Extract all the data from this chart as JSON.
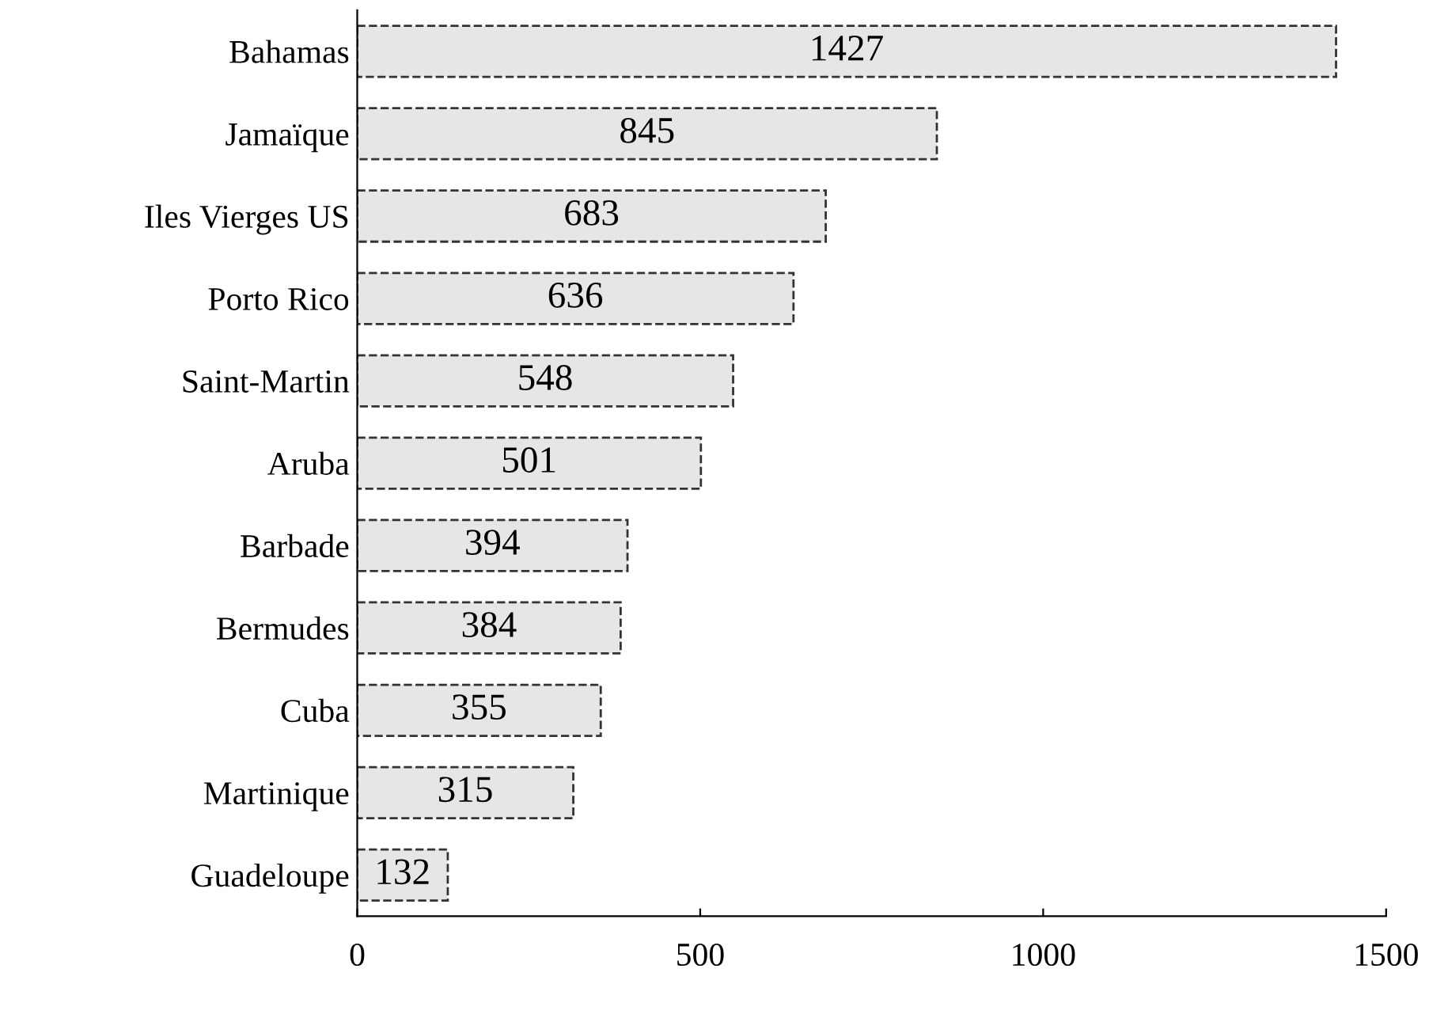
{
  "chart_data": {
    "type": "bar",
    "orientation": "horizontal",
    "categories": [
      "Bahamas",
      "Jamaïque",
      "Iles Vierges US",
      "Porto Rico",
      "Saint-Martin",
      "Aruba",
      "Barbade",
      "Bermudes",
      "Cuba",
      "Martinique",
      "Guadeloupe"
    ],
    "values": [
      1427,
      845,
      683,
      636,
      548,
      501,
      394,
      384,
      355,
      315,
      132
    ],
    "color": "#e6e6e6",
    "xlim": [
      0,
      1500
    ],
    "xticks": [
      0,
      500,
      1000,
      1500
    ],
    "data_labels": true,
    "grid": false,
    "legend": false
  }
}
